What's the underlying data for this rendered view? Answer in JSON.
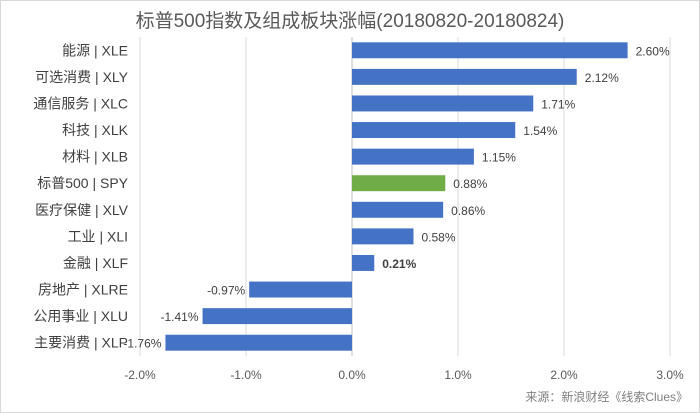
{
  "chart_data": {
    "type": "bar",
    "orientation": "horizontal",
    "title": "标普500指数及组成板块涨幅(20180820-20180824)",
    "categories": [
      "能源 | XLE",
      "可选消费 | XLY",
      "通信服务 | XLC",
      "科技 | XLK",
      "材料 | XLB",
      "标普500 | SPY",
      "医疗保健 | XLV",
      "工业 | XLI",
      "金融 | XLF",
      "房地产 | XLRE",
      "公用事业 | XLU",
      "主要消费 | XLP"
    ],
    "values": [
      2.6,
      2.12,
      1.71,
      1.54,
      1.15,
      0.88,
      0.86,
      0.58,
      0.21,
      -0.97,
      -1.41,
      -1.76
    ],
    "value_labels": [
      "2.60%",
      "2.12%",
      "1.71%",
      "1.54%",
      "1.15%",
      "0.88%",
      "0.86%",
      "0.58%",
      "0.21%",
      "-0.97%",
      "-1.41%",
      "-1.76%"
    ],
    "bold_value_label_index": 8,
    "highlight_index": 5,
    "xlim": [
      -2.0,
      3.0
    ],
    "xticks": [
      -2.0,
      -1.0,
      0.0,
      1.0,
      2.0,
      3.0
    ],
    "xtick_labels": [
      "-2.0%",
      "-1.0%",
      "0.0%",
      "1.0%",
      "2.0%",
      "3.0%"
    ],
    "xlabel": "",
    "ylabel": "",
    "grid": "vertical",
    "colors": {
      "bar": "#4472c4",
      "highlight": "#70ad47",
      "grid": "#d9d9d9",
      "axis": "#bfbfbf",
      "text": "#404040",
      "tick": "#595959"
    }
  },
  "source": "来源：新浪财经《线索Clues》"
}
